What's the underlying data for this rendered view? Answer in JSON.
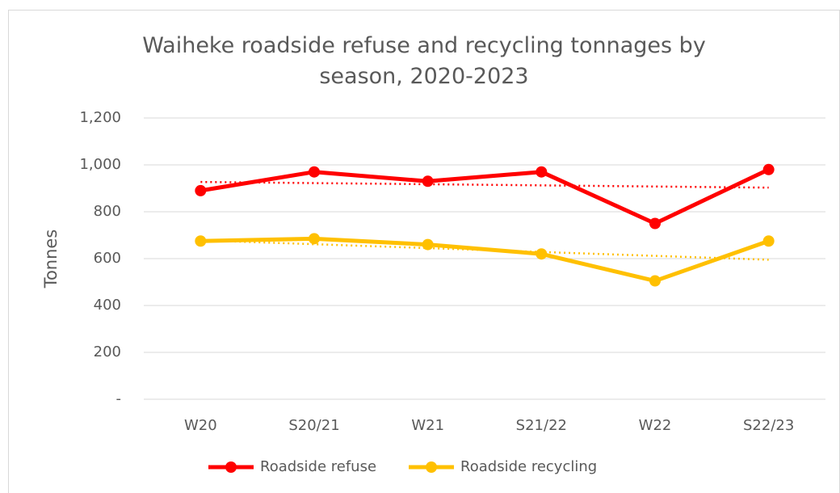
{
  "chart_data": {
    "type": "line",
    "title": "Waiheke roadside refuse and recycling tonnages by season, 2020-2023",
    "y_label": "Tonnes",
    "categories": [
      "W20",
      "S20/21",
      "W21",
      "S21/22",
      "W22",
      "S22/23"
    ],
    "series": [
      {
        "name": "Roadside refuse",
        "color": "#ff0000",
        "values": [
          890,
          970,
          930,
          970,
          750,
          980
        ]
      },
      {
        "name": "Roadside recycling",
        "color": "#ffc000",
        "values": [
          675,
          685,
          660,
          620,
          505,
          675
        ]
      }
    ],
    "ylim": [
      0,
      1200
    ],
    "yticks": [
      {
        "value": 0,
        "label": "-"
      },
      200,
      400,
      600,
      800,
      {
        "value": 1000,
        "label": "1,000"
      },
      {
        "value": 1200,
        "label": "1,200"
      }
    ],
    "grid": true,
    "trendline": true,
    "legend": "bottom"
  }
}
